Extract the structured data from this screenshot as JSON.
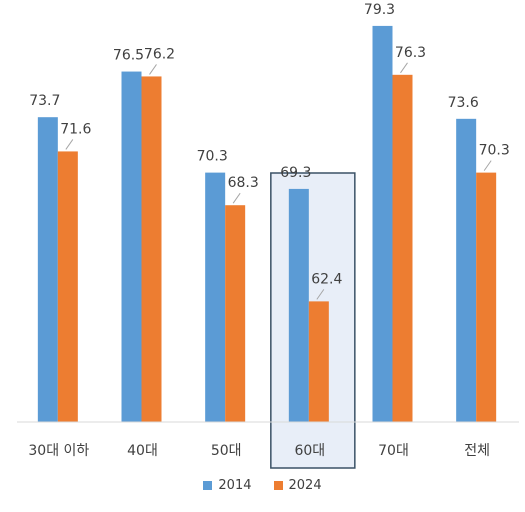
{
  "chart_data": {
    "type": "bar",
    "categories": [
      "30대 이하",
      "40대",
      "50대",
      "60대",
      "70대",
      "전체"
    ],
    "series": [
      {
        "name": "2014",
        "color": "#5B9BD5",
        "values": [
          73.7,
          76.5,
          70.3,
          69.3,
          79.3,
          73.6
        ]
      },
      {
        "name": "2024",
        "color": "#ED7D31",
        "values": [
          71.6,
          76.2,
          68.3,
          62.4,
          76.3,
          70.3
        ]
      }
    ],
    "ylim": [
      55,
      80
    ],
    "grid": false,
    "legend_position": "bottom",
    "highlighted_category": "60대",
    "highlight_fill": "#E8EEF8",
    "highlight_border": "#3A5166",
    "axis_color": "#D9D9D9"
  }
}
